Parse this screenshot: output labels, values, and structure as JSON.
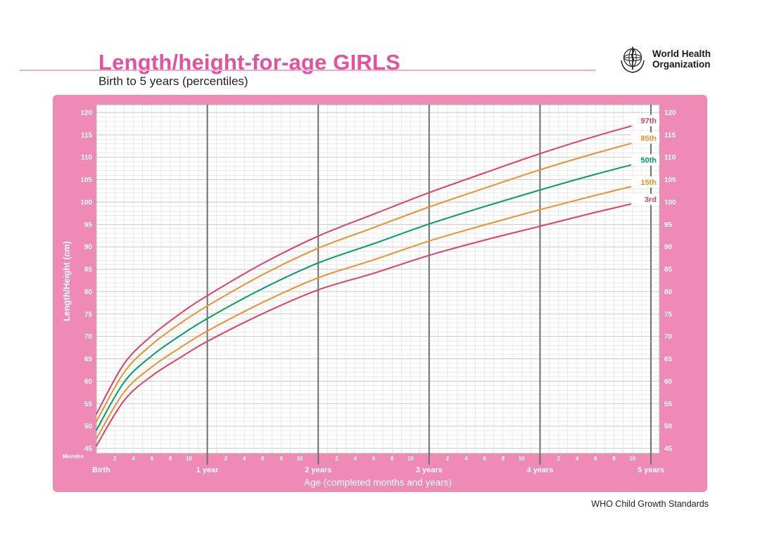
{
  "header": {
    "title": "Length/height-for-age GIRLS",
    "subtitle": "Birth to 5 years (percentiles)",
    "who_logo_line1": "World Health",
    "who_logo_line2": "Organization"
  },
  "footer": {
    "text": "WHO Child Growth Standards"
  },
  "chart_style": {
    "frame_pink": "#ef8ab5",
    "title_pink": "#e4529e",
    "rule_pink": "#f2a9cb",
    "plot_background": "#ffffff",
    "grid_minor": "#dededd",
    "grid_major": "#c7c8c6",
    "plot_border": "#b5b6b4",
    "year_line": "#6d6e71",
    "axis_text": "#ffffff",
    "red": "#e43f66",
    "orange": "#ef8f2e",
    "green": "#009e68"
  },
  "chart_data": {
    "type": "line",
    "title": "Length/height-for-age GIRLS — Birth to 5 years (percentiles)",
    "xlabel": "Age (completed months and years)",
    "ylabel": "Length/Height (cm)",
    "x_unit_label": "Months",
    "ylim": [
      45,
      120
    ],
    "xlim_months": [
      0,
      61
    ],
    "y_ticks": [
      45,
      50,
      55,
      60,
      65,
      70,
      75,
      80,
      85,
      90,
      95,
      100,
      105,
      110,
      115,
      120
    ],
    "x_year_labels": [
      "Birth",
      "1 year",
      "2 years",
      "3 years",
      "4 years",
      "5 years"
    ],
    "x_minor_month_labels": [
      2,
      4,
      6,
      8,
      10
    ],
    "grid": true,
    "legend_position": "right-inline",
    "x_months": [
      0,
      3,
      6,
      9,
      12,
      18,
      24,
      30,
      36,
      42,
      48,
      54,
      60
    ],
    "series": [
      {
        "name": "97th",
        "color_key": "red",
        "values": [
          52.7,
          63.9,
          70.2,
          75.0,
          79.1,
          86.3,
          92.4,
          97.3,
          102.1,
          106.5,
          110.8,
          114.7,
          118.2
        ]
      },
      {
        "name": "85th",
        "color_key": "orange",
        "values": [
          51.0,
          62.0,
          68.2,
          72.8,
          76.8,
          83.8,
          89.7,
          94.3,
          98.9,
          103.1,
          107.2,
          110.9,
          114.3
        ]
      },
      {
        "name": "50th",
        "color_key": "green",
        "values": [
          49.1,
          59.8,
          65.7,
          70.1,
          74.0,
          80.7,
          86.4,
          90.7,
          95.1,
          99.0,
          102.7,
          106.2,
          109.4
        ]
      },
      {
        "name": "15th",
        "color_key": "orange",
        "values": [
          47.2,
          57.6,
          63.2,
          67.4,
          71.2,
          77.6,
          83.1,
          87.1,
          91.3,
          94.9,
          98.3,
          101.5,
          104.5
        ]
      },
      {
        "name": "3rd",
        "color_key": "red",
        "values": [
          45.6,
          55.7,
          61.2,
          65.2,
          68.9,
          75.1,
          80.4,
          84.1,
          88.1,
          91.5,
          94.6,
          97.7,
          100.6
        ]
      }
    ]
  }
}
